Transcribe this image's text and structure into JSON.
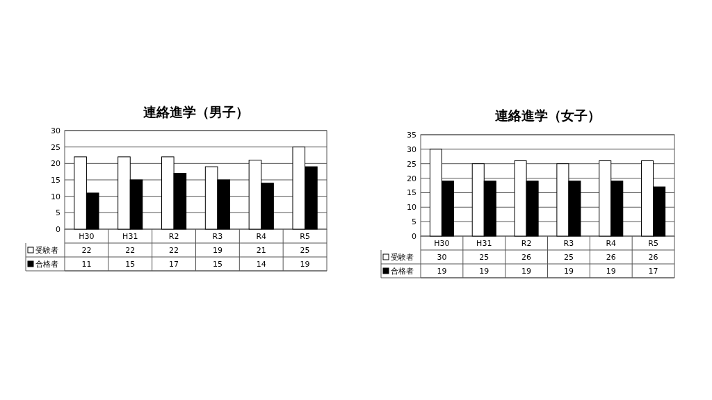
{
  "chart_data": [
    {
      "type": "bar",
      "title": "連絡進学（男子）",
      "categories": [
        "H30",
        "H31",
        "R2",
        "R3",
        "R4",
        "R5"
      ],
      "series": [
        {
          "name": "受験者",
          "color": "#ffffff",
          "values": [
            22,
            22,
            22,
            19,
            21,
            25
          ]
        },
        {
          "name": "合格者",
          "color": "#000000",
          "values": [
            11,
            15,
            17,
            15,
            14,
            19
          ]
        }
      ],
      "ylim": [
        0,
        30
      ],
      "yticks": [
        0,
        5,
        10,
        15,
        20,
        25,
        30
      ],
      "grid": "y",
      "legend": "bottom left",
      "data_labels": true
    },
    {
      "type": "bar",
      "title": "連絡進学（女子）",
      "categories": [
        "H30",
        "H31",
        "R2",
        "R3",
        "R4",
        "R5"
      ],
      "series": [
        {
          "name": "受験者",
          "color": "#ffffff",
          "values": [
            30,
            25,
            26,
            25,
            26,
            26
          ]
        },
        {
          "name": "合格者",
          "color": "#000000",
          "values": [
            19,
            19,
            19,
            19,
            19,
            17
          ]
        }
      ],
      "ylim": [
        0,
        35
      ],
      "yticks": [
        0,
        5,
        10,
        15,
        20,
        25,
        30,
        35
      ],
      "grid": "y",
      "legend": "bottom left",
      "data_labels": true
    }
  ]
}
